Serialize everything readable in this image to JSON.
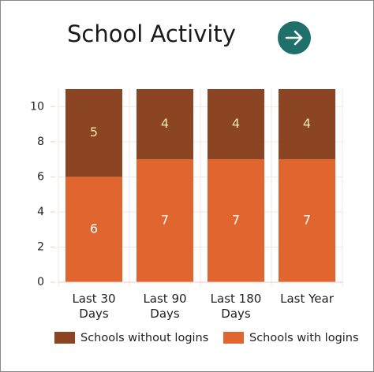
{
  "chart_data": {
    "type": "stacked_bar",
    "title": "School Activity",
    "categories": [
      "Last 30 Days",
      "Last 90 Days",
      "Last 180 Days",
      "Last Year"
    ],
    "series": [
      {
        "name": "Schools without logins",
        "color": "#8c4522",
        "label_color": "#fde7a6",
        "values": [
          5,
          4,
          4,
          4
        ]
      },
      {
        "name": "Schools with logins",
        "color": "#e0652e",
        "label_color": "#ffffff",
        "values": [
          6,
          7,
          7,
          7
        ]
      }
    ],
    "ylim": [
      0,
      11
    ],
    "yticks": [
      0,
      2,
      4,
      6,
      8,
      10
    ],
    "grid": true,
    "legend": "bottom"
  }
}
